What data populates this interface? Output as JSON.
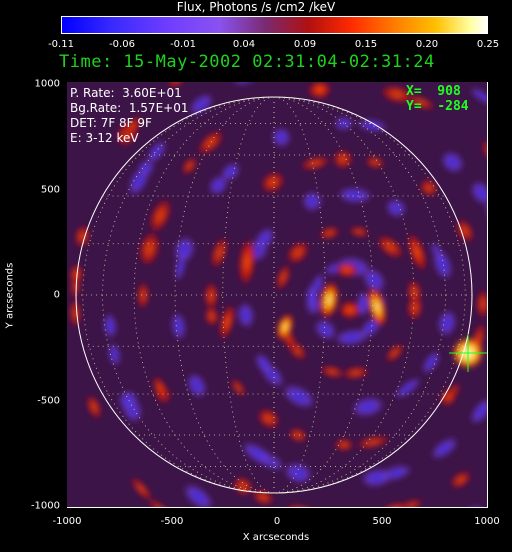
{
  "colorbar": {
    "title": "Flux, Photons /s /cm2 /keV",
    "ticks": [
      "-0.11",
      "-0.06",
      "-0.01",
      "0.04",
      "0.09",
      "0.15",
      "0.20",
      "0.25"
    ]
  },
  "header": {
    "time": "Time: 15-May-2002 02:31:04-02:31:24"
  },
  "info": {
    "p_rate": "P. Rate:  3.60E+01",
    "bg_rate": "Bg.Rate:  1.57E+01",
    "det": "DET: 7F 8F 9F",
    "energy": "E: 3-12 keV"
  },
  "cursor": {
    "x": "X=  908",
    "y": "Y=  -284"
  },
  "axes": {
    "xlabel": "X arcseconds",
    "ylabel": "Y arcseconds",
    "xticks": [
      "-1000",
      "-500",
      "0",
      "500",
      "1000"
    ],
    "yticks": [
      "1000",
      "500",
      "0",
      "-500",
      "-1000"
    ]
  },
  "colors": {
    "title_green": "#1fd21f",
    "cursor_green": "#1fff1f"
  }
}
